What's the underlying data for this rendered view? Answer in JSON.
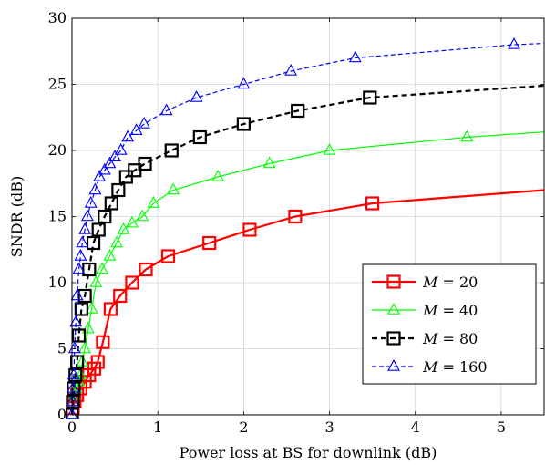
{
  "chart_data": {
    "type": "line",
    "xlabel": "Power loss at BS for downlink (dB)",
    "ylabel": "SNDR (dB)",
    "xlim": [
      0,
      5.5
    ],
    "ylim": [
      0,
      30
    ],
    "xticks": [
      0,
      1,
      2,
      3,
      4,
      5
    ],
    "yticks": [
      0,
      5,
      10,
      15,
      20,
      25,
      30
    ],
    "xtick_labels": [
      "0",
      "1",
      "2",
      "3",
      "4",
      "5"
    ],
    "ytick_labels": [
      "0",
      "5",
      "10",
      "15",
      "20",
      "25",
      "30"
    ],
    "grid": true,
    "legend_position": "lower-right",
    "series": [
      {
        "name": "M = 20",
        "legend_var": "M",
        "legend_value": "20",
        "color": "#ff0000",
        "marker": "square",
        "dash": "solid",
        "x": [
          0,
          0.01,
          0.03,
          0.06,
          0.1,
          0.15,
          0.2,
          0.26,
          0.3,
          0.36,
          0.45,
          0.56,
          0.7,
          0.86,
          1.12,
          1.6,
          2.07,
          2.6,
          3.5,
          5.5
        ],
        "y": [
          0,
          0.5,
          1,
          1.5,
          2,
          2.5,
          3,
          3.5,
          4,
          5.5,
          8,
          9,
          10,
          11,
          12,
          13,
          14,
          15,
          16,
          17
        ]
      },
      {
        "name": "M = 40",
        "legend_var": "M",
        "legend_value": "40",
        "color": "#00ff00",
        "marker": "triangle",
        "dash": "solid",
        "x": [
          0,
          0.01,
          0.03,
          0.05,
          0.08,
          0.1,
          0.12,
          0.15,
          0.19,
          0.23,
          0.28,
          0.35,
          0.44,
          0.52,
          0.6,
          0.7,
          0.82,
          0.95,
          1.18,
          1.7,
          2.3,
          3.0,
          4.6,
          5.5
        ],
        "y": [
          0,
          1,
          1.5,
          2,
          2.5,
          3,
          4,
          5,
          6.5,
          8,
          10,
          11,
          12,
          13,
          14,
          14.5,
          15,
          16,
          17,
          18,
          19,
          20,
          21,
          21.4
        ]
      },
      {
        "name": "M = 80",
        "legend_var": "M",
        "legend_value": "80",
        "color": "#000000",
        "marker": "square",
        "dash": "dashed",
        "x": [
          0,
          0.01,
          0.02,
          0.04,
          0.06,
          0.08,
          0.11,
          0.15,
          0.2,
          0.25,
          0.31,
          0.38,
          0.46,
          0.54,
          0.63,
          0.73,
          0.85,
          1.16,
          1.49,
          2.0,
          2.63,
          3.47,
          5.5
        ],
        "y": [
          0,
          1,
          2,
          3,
          4,
          6,
          8,
          9,
          11,
          13,
          14,
          15,
          16,
          17,
          18,
          18.5,
          19,
          20,
          21,
          22,
          23,
          24,
          24.9
        ]
      },
      {
        "name": "M = 160",
        "legend_var": "M",
        "legend_value": "160",
        "color": "#0000ff",
        "marker": "triangle",
        "dash": "dashed",
        "x": [
          0,
          0.005,
          0.01,
          0.02,
          0.03,
          0.045,
          0.06,
          0.08,
          0.1,
          0.12,
          0.15,
          0.18,
          0.22,
          0.27,
          0.32,
          0.38,
          0.44,
          0.5,
          0.57,
          0.65,
          0.75,
          0.84,
          1.1,
          1.45,
          2.0,
          2.55,
          3.3,
          5.15,
          5.5
        ],
        "y": [
          0,
          1,
          2,
          3,
          5,
          7,
          9,
          11,
          12,
          13,
          14,
          15,
          16,
          17,
          18,
          18.5,
          19,
          19.5,
          20,
          21,
          21.5,
          22,
          23,
          24,
          25,
          26,
          27,
          28,
          28.1
        ]
      }
    ]
  }
}
